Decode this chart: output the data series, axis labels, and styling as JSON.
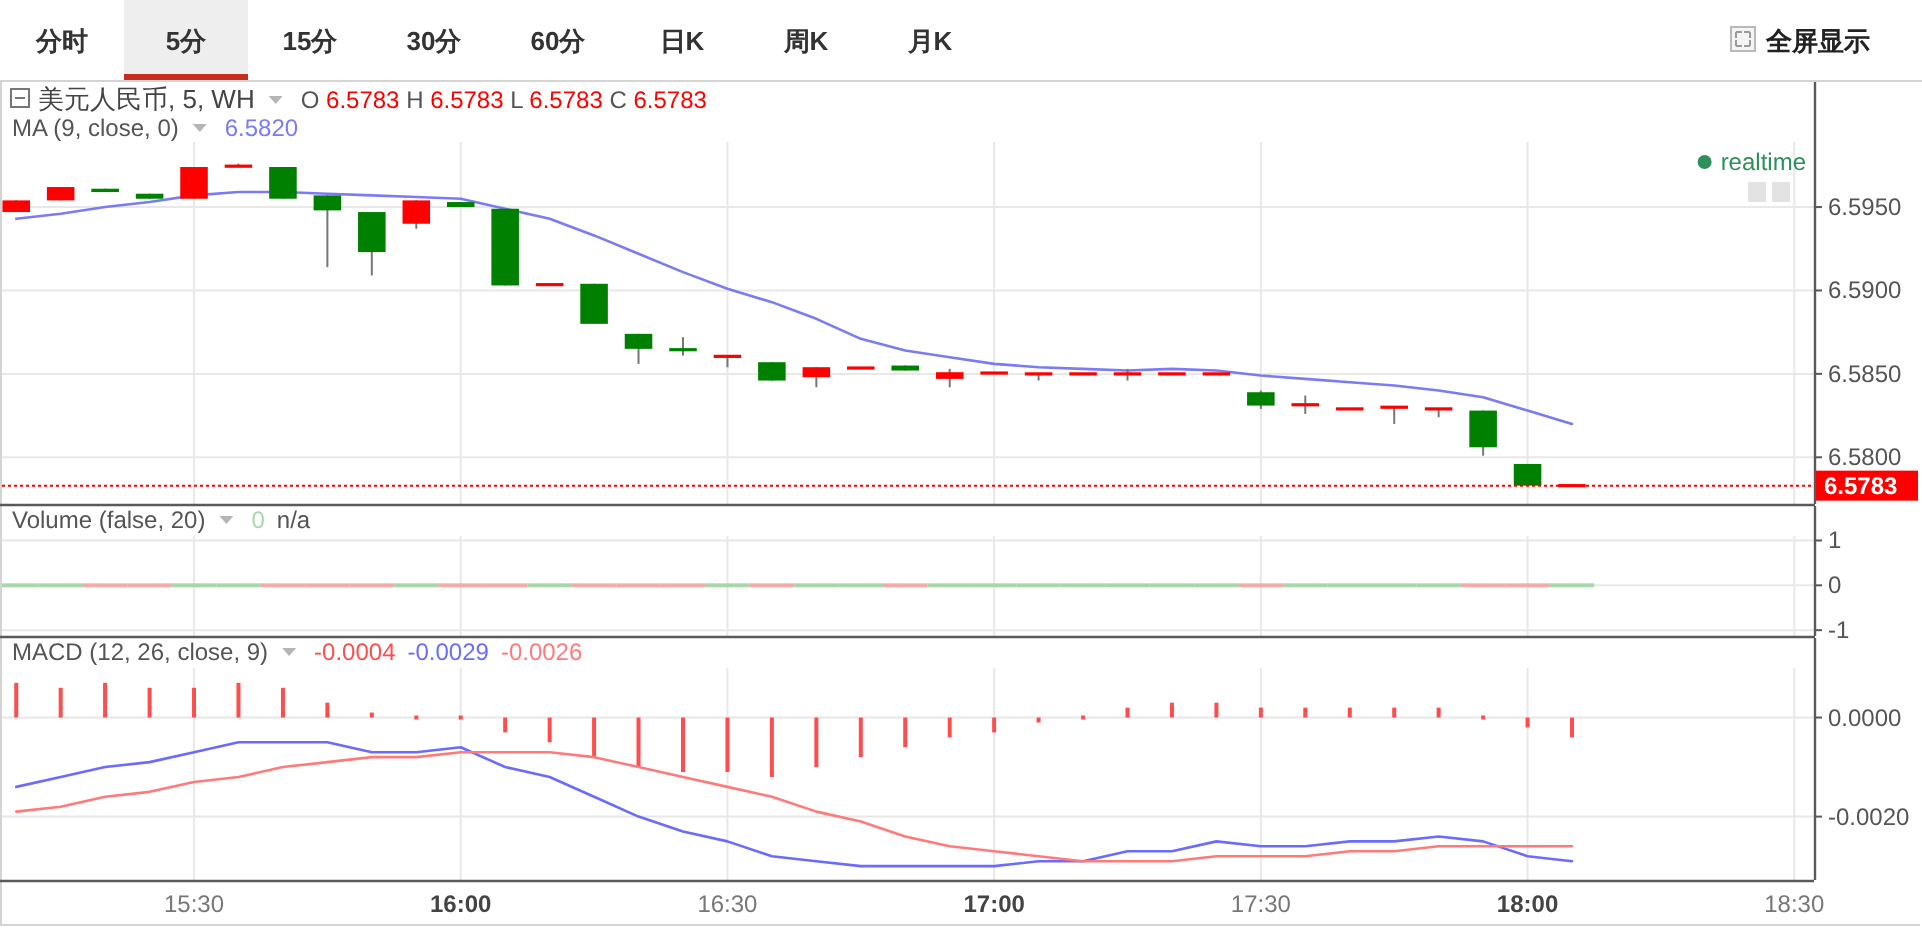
{
  "chart_data": [
    {
      "type": "other",
      "annotations": [
        "分时",
        "5分",
        "15分",
        "30分",
        "60分",
        "日K",
        "周K",
        "月K",
        "全屏显示"
      ]
    },
    {
      "type": "candlestick",
      "title": "美元人民币, 5, WH",
      "x": [
        15.1667,
        15.25,
        15.3333,
        15.4167,
        15.5,
        15.5833,
        15.6667,
        15.75,
        15.8333,
        15.9167,
        16,
        16.0833,
        16.1667,
        16.25,
        16.3333,
        16.4167,
        16.5,
        16.5833,
        16.6667,
        16.75,
        16.8333,
        16.9167,
        17,
        17.0833,
        17.1667,
        17.25,
        17.3333,
        17.4167,
        17.5,
        17.5833,
        17.6667,
        17.75,
        17.8333,
        17.9167,
        18,
        18.0833
      ],
      "ohlc": [
        [
          6.5947,
          6.5954,
          6.5947,
          6.5954
        ],
        [
          6.5954,
          6.5962,
          6.5954,
          6.5962
        ],
        [
          6.5961,
          6.5961,
          6.5959,
          6.5959
        ],
        [
          6.5958,
          6.5958,
          6.5955,
          6.5955
        ],
        [
          6.5955,
          6.5974,
          6.5955,
          6.5974
        ],
        [
          6.5974,
          6.5976,
          6.5974,
          6.5975
        ],
        [
          6.5974,
          6.5974,
          6.5955,
          6.5955
        ],
        [
          6.5957,
          6.5957,
          6.5914,
          6.5948
        ],
        [
          6.5947,
          6.5947,
          6.5909,
          6.5923
        ],
        [
          6.594,
          6.5954,
          6.5937,
          6.5954
        ],
        [
          6.5953,
          6.5953,
          6.595,
          6.595
        ],
        [
          6.5949,
          6.5949,
          6.5903,
          6.5903
        ],
        [
          6.5903,
          6.5904,
          6.5903,
          6.5904
        ],
        [
          6.5904,
          6.5904,
          6.588,
          6.588
        ],
        [
          6.5874,
          6.5874,
          6.5856,
          6.5865
        ],
        [
          6.5865,
          6.5872,
          6.5861,
          6.5864
        ],
        [
          6.586,
          6.5861,
          6.5854,
          6.5861
        ],
        [
          6.5857,
          6.5857,
          6.5846,
          6.5846
        ],
        [
          6.5848,
          6.5854,
          6.5842,
          6.5854
        ],
        [
          6.5853,
          6.5854,
          6.5853,
          6.5854
        ],
        [
          6.5855,
          6.5855,
          6.5852,
          6.5852
        ],
        [
          6.5847,
          6.5853,
          6.5842,
          6.5851
        ],
        [
          6.585,
          6.5851,
          6.585,
          6.5851
        ],
        [
          6.585,
          6.585,
          6.5846,
          6.585
        ],
        [
          6.585,
          6.585,
          6.585,
          6.585
        ],
        [
          6.585,
          6.5853,
          6.5846,
          6.585
        ],
        [
          6.585,
          6.585,
          6.585,
          6.585
        ],
        [
          6.585,
          6.585,
          6.585,
          6.585
        ],
        [
          6.5839,
          6.584,
          6.5829,
          6.5831
        ],
        [
          6.5831,
          6.5837,
          6.5826,
          6.5832
        ],
        [
          6.5829,
          6.5829,
          6.5829,
          6.5829
        ],
        [
          6.583,
          6.583,
          6.582,
          6.583
        ],
        [
          6.5829,
          6.5829,
          6.5824,
          6.5829
        ],
        [
          6.5828,
          6.5828,
          6.5801,
          6.5806
        ],
        [
          6.5796,
          6.5796,
          6.5783,
          6.5783
        ],
        [
          6.5783,
          6.5783,
          6.5783,
          6.5783
        ]
      ],
      "colors": [
        "#ff0000",
        "#ff0000",
        "#008000",
        "#008000",
        "#ff0000",
        "#ff0000",
        "#008000",
        "#008000",
        "#008000",
        "#ff0000",
        "#008000",
        "#008000",
        "#ff0000",
        "#008000",
        "#008000",
        "#008000",
        "#ff0000",
        "#008000",
        "#ff0000",
        "#ff0000",
        "#008000",
        "#ff0000",
        "#ff0000",
        "#ff0000",
        "#ff0000",
        "#ff0000",
        "#ff0000",
        "#ff0000",
        "#008000",
        "#ff0000",
        "#ff0000",
        "#ff0000",
        "#ff0000",
        "#008000",
        "#008000",
        "#ff0000"
      ],
      "series": [
        {
          "name": "MA (9, close, 0)",
          "type": "line",
          "color": "#7b7bf5",
          "values": [
            6.5943,
            6.5946,
            6.595,
            6.5953,
            6.5957,
            6.5959,
            6.5959,
            6.5958,
            6.5957,
            6.5956,
            6.5955,
            6.5949,
            6.5943,
            6.5933,
            6.5922,
            6.5911,
            6.5901,
            6.5893,
            6.5883,
            6.5871,
            6.5864,
            6.586,
            6.5856,
            6.5854,
            6.5853,
            6.5852,
            6.5853,
            6.5852,
            6.5849,
            6.5847,
            6.5845,
            6.5843,
            6.584,
            6.5836,
            6.5828,
            6.582
          ]
        }
      ],
      "annotations": [
        "O 6.5783 H 6.5783 L 6.5783 C 6.5783",
        "6.5820",
        "realtime"
      ],
      "xlim": [
        15.14,
        18.537
      ],
      "xticks": [
        15.5,
        16,
        16.5,
        17,
        17.5,
        18,
        18.5
      ],
      "ylim": [
        6.5772,
        6.5989
      ],
      "yticks": [
        {
          "value": 6.58,
          "label": "6.5800"
        },
        {
          "value": 6.585,
          "label": "6.5850"
        },
        {
          "value": 6.59,
          "label": "6.5900"
        },
        {
          "value": 6.595,
          "label": "6.5950"
        }
      ],
      "ref_lines": [
        {
          "axis": "y",
          "value": 6.5783,
          "label": "6.5783",
          "color": "#ff0000",
          "line_style": "dotted"
        }
      ],
      "grid": true,
      "tick_labels": "y"
    },
    {
      "type": "bar",
      "title": "Volume (false, 20)",
      "annotations": [
        "0",
        "n/a"
      ],
      "x": [
        15.1667,
        15.25,
        15.3333,
        15.4167,
        15.5,
        15.5833,
        15.6667,
        15.75,
        15.8333,
        15.9167,
        16,
        16.0833,
        16.1667,
        16.25,
        16.3333,
        16.4167,
        16.5,
        16.5833,
        16.6667,
        16.75,
        16.8333,
        16.9167,
        17,
        17.0833,
        17.1667,
        17.25,
        17.3333,
        17.4167,
        17.5,
        17.5833,
        17.6667,
        17.75,
        17.8333,
        17.9167,
        18,
        18.0833
      ],
      "values": [
        0,
        0,
        0,
        0,
        0,
        0,
        0,
        0,
        0,
        0,
        0,
        0,
        0,
        0,
        0,
        0,
        0,
        0,
        0,
        0,
        0,
        0,
        0,
        0,
        0,
        0,
        0,
        0,
        0,
        0,
        0,
        0,
        0,
        0,
        0,
        0
      ],
      "colors": [
        "#a8d8a9",
        "#a8d8a9",
        "#f6abab",
        "#f6abab",
        "#a8d8a9",
        "#a8d8a9",
        "#f6abab",
        "#f6abab",
        "#f6abab",
        "#a8d8a9",
        "#f6abab",
        "#f6abab",
        "#a8d8a9",
        "#f6abab",
        "#f6abab",
        "#f6abab",
        "#a8d8a9",
        "#f6abab",
        "#a8d8a9",
        "#a8d8a9",
        "#f6abab",
        "#a8d8a9",
        "#a8d8a9",
        "#a8d8a9",
        "#a8d8a9",
        "#a8d8a9",
        "#a8d8a9",
        "#a8d8a9",
        "#f6abab",
        "#a8d8a9",
        "#a8d8a9",
        "#a8d8a9",
        "#a8d8a9",
        "#f6abab",
        "#f6abab",
        "#a8d8a9"
      ],
      "xlim": [
        15.14,
        18.537
      ],
      "xticks": [
        15.5,
        16,
        16.5,
        17,
        17.5,
        18,
        18.5
      ],
      "ylim": [
        -1.13,
        1.1
      ],
      "yticks": [
        -1,
        0,
        1
      ],
      "grid": true,
      "tick_labels": "y"
    },
    {
      "type": "bar",
      "title": "MACD (12, 26, close, 9)",
      "annotations": [
        "-0.0004",
        "-0.0029",
        "-0.0026"
      ],
      "x": [
        15.1667,
        15.25,
        15.3333,
        15.4167,
        15.5,
        15.5833,
        15.6667,
        15.75,
        15.8333,
        15.9167,
        16,
        16.0833,
        16.1667,
        16.25,
        16.3333,
        16.4167,
        16.5,
        16.5833,
        16.6667,
        16.75,
        16.8333,
        16.9167,
        17,
        17.0833,
        17.1667,
        17.25,
        17.3333,
        17.4167,
        17.5,
        17.5833,
        17.6667,
        17.75,
        17.8333,
        17.9167,
        18,
        18.0833
      ],
      "series": [
        {
          "type": "bar",
          "color": "#ff4d4d",
          "values": [
            0.0007,
            0.0006,
            0.0007,
            0.0006,
            0.0006,
            0.0007,
            0.0006,
            0.0003,
            0.0001,
            0,
            0,
            -0.0003,
            -0.0005,
            -0.0008,
            -0.001,
            -0.0011,
            -0.0011,
            -0.0012,
            -0.001,
            -0.0008,
            -0.0006,
            -0.0004,
            -0.0003,
            -0.0001,
            0,
            0.0002,
            0.0003,
            0.0003,
            0.0002,
            0.0002,
            0.0002,
            0.0002,
            0.0002,
            0,
            -0.0002,
            -0.0004
          ]
        },
        {
          "type": "line",
          "color": "#6b6bff",
          "values": [
            -0.0014,
            -0.0012,
            -0.001,
            -0.0009,
            -0.0007,
            -0.0005,
            -0.0005,
            -0.0005,
            -0.0007,
            -0.0007,
            -0.0006,
            -0.001,
            -0.0012,
            -0.0016,
            -0.002,
            -0.0023,
            -0.0025,
            -0.0028,
            -0.0029,
            -0.003,
            -0.003,
            -0.003,
            -0.003,
            -0.0029,
            -0.0029,
            -0.0027,
            -0.0027,
            -0.0025,
            -0.0026,
            -0.0026,
            -0.0025,
            -0.0025,
            -0.0024,
            -0.0025,
            -0.0028,
            -0.0029
          ]
        },
        {
          "type": "line",
          "color": "#ff7b7b",
          "values": [
            -0.0019,
            -0.0018,
            -0.0016,
            -0.0015,
            -0.0013,
            -0.0012,
            -0.001,
            -0.0009,
            -0.0008,
            -0.0008,
            -0.0007,
            -0.0007,
            -0.0007,
            -0.0008,
            -0.001,
            -0.0012,
            -0.0014,
            -0.0016,
            -0.0019,
            -0.0021,
            -0.0024,
            -0.0026,
            -0.0027,
            -0.0028,
            -0.0029,
            -0.0029,
            -0.0029,
            -0.0028,
            -0.0028,
            -0.0028,
            -0.0027,
            -0.0027,
            -0.0026,
            -0.0026,
            -0.0026,
            -0.0026
          ]
        }
      ],
      "xlim": [
        15.14,
        18.537
      ],
      "xticks": [
        {
          "value": 15.5,
          "label": "15:30"
        },
        {
          "value": 16,
          "label": "16:00"
        },
        {
          "value": 16.5,
          "label": "16:30"
        },
        {
          "value": 17,
          "label": "17:00"
        },
        {
          "value": 17.5,
          "label": "17:30"
        },
        {
          "value": 18,
          "label": "18:00"
        },
        {
          "value": 18.5,
          "label": "18:30"
        }
      ],
      "ylim": [
        -0.00328,
        0.001
      ],
      "yticks": [
        {
          "value": -0.002,
          "label": "-0.0020"
        },
        {
          "value": 0,
          "label": "0.0000"
        }
      ],
      "grid": true
    }
  ]
}
